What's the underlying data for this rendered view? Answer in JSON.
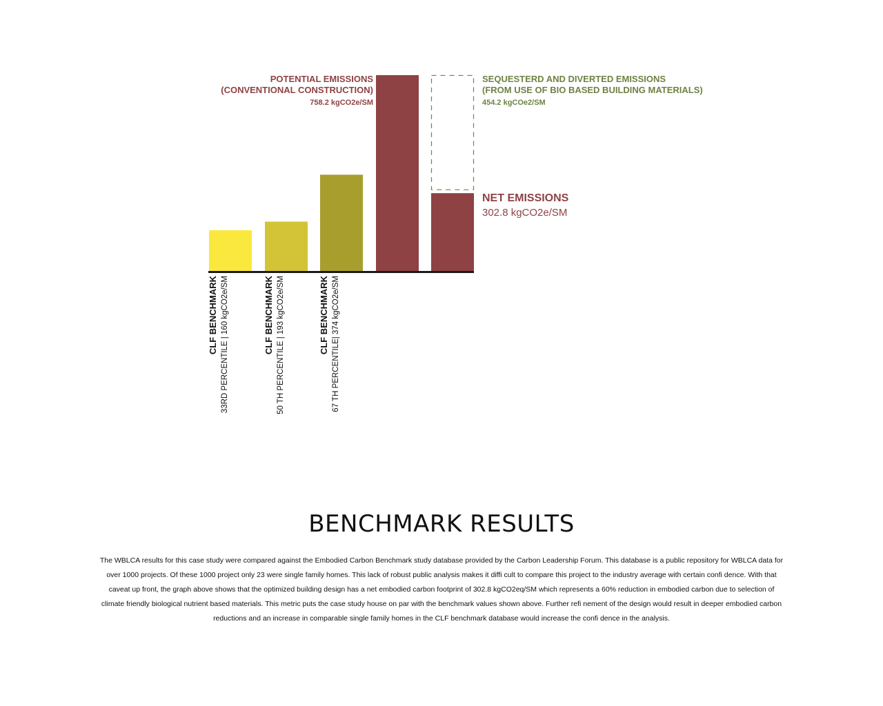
{
  "page": {
    "title": "BENCHMARK RESULTS",
    "body": "The WBLCA results for this case study were compared against the Embodied Carbon Benchmark study database provided by the Carbon Leadership Forum. This database is a public repository for WBLCA data for over 1000 projects. Of these 1000 project only 23 were single family homes. This lack of robust public analysis makes it diffi cult to compare this project to the industry average with certain confi dence. With that caveat up front, the graph above shows that the optimized building design has a net embodied carbon footprint of 302.8 kgCO2eq/SM which represents a 60% reduction in embodied carbon due to selection of climate friendly biological nutrient based materials. This metric puts the case study house on par with the benchmark values shown above. Further refi nement of the design would result in deeper embodied carbon reductions and an increase in comparable single family homes in the CLF benchmark database would increase the confi dence in the analysis."
  },
  "colors": {
    "benchmark_33": "#fbe83f",
    "benchmark_50": "#d3c336",
    "benchmark_67": "#a89e2d",
    "emissions": "#8e4244",
    "sequestered": "#6d8243",
    "baseline": "#1a1a1a"
  },
  "chart_data": {
    "type": "bar",
    "title": "",
    "xlabel": "",
    "ylabel": "",
    "unit": "kgCO2e/SM",
    "ylim": [
      0,
      758.2
    ],
    "bars": [
      {
        "value": 160,
        "color_key": "benchmark_33",
        "label_line1": "CLF  BENCHMARK",
        "label_line2": "33RD PERCENTILE | 160 kgCO2e/SM"
      },
      {
        "value": 193,
        "color_key": "benchmark_50",
        "label_line1": "CLF  BENCHMARK",
        "label_line2": "50 TH PERCENTILE | 193 kgCO2e/SM"
      },
      {
        "value": 374,
        "color_key": "benchmark_67",
        "label_line1": "CLF  BENCHMARK",
        "label_line2": "67 TH PERCENTILE| 374 kgCO2e/SM"
      },
      {
        "value": 758.2,
        "color_key": "emissions",
        "annotation": [
          "POTENTIAL EMISSIONS",
          "(CONVENTIONAL CONSTRUCTION)",
          "758.2 kgCO2e/SM"
        ]
      },
      {
        "value": 302.8,
        "stack_value": 454.2,
        "color_key": "emissions",
        "stack_color_key": "sequestered",
        "stack_style": "dashed",
        "annotation": [
          "NET EMISSIONS",
          "302.8 kgCO2e/SM"
        ],
        "stack_annotation": [
          "SEQUESTERD AND DIVERTED EMISSIONS",
          "(FROM USE OF BIO BASED BUILDING MATERIALS)",
          "454.2 kgCOe2/SM"
        ]
      }
    ]
  }
}
